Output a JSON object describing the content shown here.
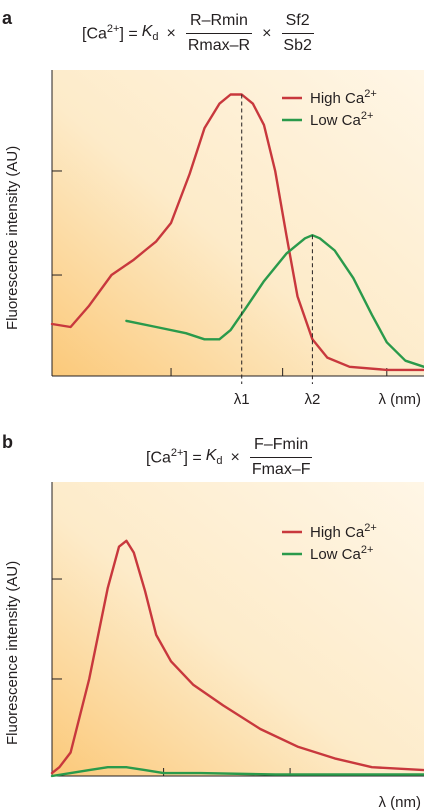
{
  "panel_a": {
    "letter": "a",
    "equation": {
      "lhs": "[Ca",
      "lhs_sup": "2+",
      "lhs_close": "] =",
      "k": "K",
      "k_sub": "d",
      "times": "×",
      "frac1_num": "R–Rmin",
      "frac1_den": "Rmax–R",
      "frac2_num": "Sf2",
      "frac2_den": "Sb2"
    }
  },
  "panel_b": {
    "letter": "b",
    "equation": {
      "lhs": "[Ca",
      "lhs_sup": "2+",
      "lhs_close": "] =",
      "k": "K",
      "k_sub": "d",
      "times": "×",
      "frac1_num": "F–Fmin",
      "frac1_den": "Fmax–F"
    }
  },
  "colors": {
    "high": "#c8383d",
    "low": "#2a9a4b",
    "bg_light": "#fdebc9",
    "bg_dark": "#fbc97a"
  },
  "chart_data": [
    {
      "type": "line",
      "panel": "a",
      "xlabel": "λ (nm)",
      "ylabel": "Fluorescence intensity (AU)",
      "xlim": [
        0,
        1
      ],
      "ylim": [
        0,
        1
      ],
      "ticks_y": [
        0.33,
        0.67
      ],
      "ticks_x": [
        0.32,
        0.62,
        0.9
      ],
      "marked_x": [
        {
          "label": "λ1",
          "x": 0.51
        },
        {
          "label": "λ2",
          "x": 0.7
        }
      ],
      "legend": "top-right",
      "series": [
        {
          "name": "High Ca2+",
          "color_key": "high",
          "x": [
            0.0,
            0.05,
            0.1,
            0.16,
            0.22,
            0.25,
            0.28,
            0.32,
            0.37,
            0.41,
            0.45,
            0.48,
            0.51,
            0.54,
            0.57,
            0.6,
            0.63,
            0.66,
            0.7,
            0.74,
            0.8,
            0.9,
            1.0
          ],
          "y": [
            0.17,
            0.16,
            0.23,
            0.33,
            0.38,
            0.41,
            0.44,
            0.5,
            0.66,
            0.81,
            0.89,
            0.92,
            0.92,
            0.89,
            0.82,
            0.67,
            0.46,
            0.26,
            0.12,
            0.06,
            0.03,
            0.02,
            0.02
          ]
        },
        {
          "name": "Low Ca2+",
          "color_key": "low",
          "x": [
            0.2,
            0.28,
            0.36,
            0.41,
            0.45,
            0.48,
            0.52,
            0.57,
            0.63,
            0.68,
            0.7,
            0.72,
            0.76,
            0.81,
            0.86,
            0.9,
            0.95,
            1.0
          ],
          "y": [
            0.18,
            0.16,
            0.14,
            0.12,
            0.12,
            0.15,
            0.22,
            0.31,
            0.4,
            0.45,
            0.46,
            0.45,
            0.41,
            0.32,
            0.2,
            0.11,
            0.05,
            0.03
          ]
        }
      ]
    },
    {
      "type": "line",
      "panel": "b",
      "xlabel": "λ (nm)",
      "ylabel": "Fluorescence intensity (AU)",
      "xlim": [
        0,
        1
      ],
      "ylim": [
        0,
        1
      ],
      "ticks_y": [
        0.33,
        0.67
      ],
      "ticks_x": [
        0.3,
        0.64
      ],
      "marked_x": [],
      "legend": "top-right",
      "series": [
        {
          "name": "High Ca2+",
          "color_key": "high",
          "x": [
            0.0,
            0.02,
            0.05,
            0.1,
            0.15,
            0.18,
            0.2,
            0.22,
            0.25,
            0.28,
            0.32,
            0.38,
            0.46,
            0.56,
            0.66,
            0.76,
            0.86,
            1.0
          ],
          "y": [
            0.01,
            0.03,
            0.08,
            0.33,
            0.64,
            0.78,
            0.8,
            0.76,
            0.63,
            0.48,
            0.39,
            0.31,
            0.24,
            0.16,
            0.1,
            0.06,
            0.03,
            0.02
          ]
        },
        {
          "name": "Low Ca2+",
          "color_key": "low",
          "x": [
            0.0,
            0.05,
            0.1,
            0.15,
            0.2,
            0.25,
            0.3,
            0.4,
            0.6,
            0.8,
            1.0
          ],
          "y": [
            0.0,
            0.01,
            0.02,
            0.03,
            0.03,
            0.02,
            0.01,
            0.01,
            0.005,
            0.005,
            0.005
          ]
        }
      ]
    }
  ]
}
